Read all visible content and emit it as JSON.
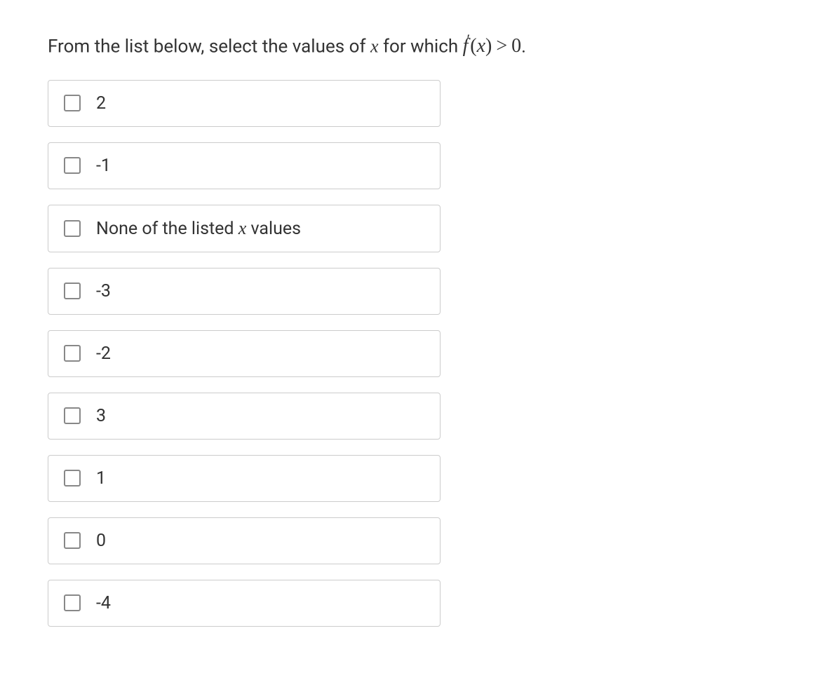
{
  "question": {
    "prefix": "From the list below, select the values of ",
    "var_x": "x",
    "middle": " for which ",
    "func_f": "f",
    "prime_mark": "′",
    "open_paren": "(",
    "func_arg": "x",
    "close_paren": ")",
    "operator": ">",
    "rhs": "0",
    "suffix": "."
  },
  "options": [
    {
      "label": "2",
      "has_math": false
    },
    {
      "label": "-1",
      "has_math": false
    },
    {
      "label_prefix": "None of the listed ",
      "math_var": "x",
      "label_suffix": " values",
      "has_math": true
    },
    {
      "label": "-3",
      "has_math": false
    },
    {
      "label": "-2",
      "has_math": false
    },
    {
      "label": "3",
      "has_math": false
    },
    {
      "label": "1",
      "has_math": false
    },
    {
      "label": "0",
      "has_math": false
    },
    {
      "label": "-4",
      "has_math": false
    }
  ],
  "colors": {
    "text": "#333333",
    "border": "#cccccc",
    "checkbox_border": "#888888",
    "background": "#ffffff"
  }
}
